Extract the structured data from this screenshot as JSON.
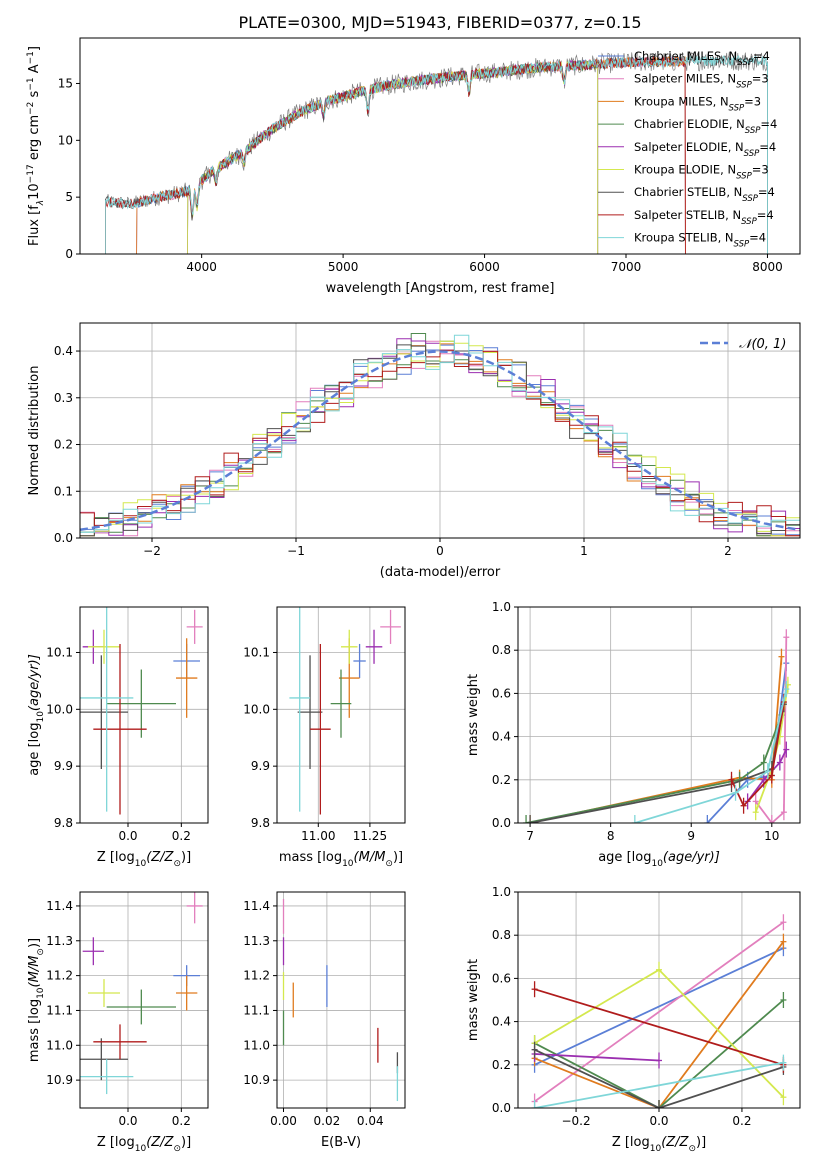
{
  "title": "PLATE=0300, MJD=51943, FIBERID=0377, z=0.15",
  "model_colors": {
    "Chabrier MILES": "#5b7fd6",
    "Salpeter MILES": "#e27fbd",
    "Kroupa MILES": "#e07b1e",
    "Chabrier ELODIE": "#4f8a4f",
    "Salpeter ELODIE": "#9b2fb0",
    "Kroupa ELODIE": "#d4e84e",
    "Chabrier STELIB": "#505050",
    "Salpeter STELIB": "#b01c1c",
    "Kroupa STELIB": "#7fd6d8"
  },
  "chart_data": [
    {
      "id": "spectrum",
      "type": "line",
      "xlabel": "wavelength [Angstrom, rest frame]",
      "ylabel_main": "Flux [f",
      "ylabel_sub": "λ",
      "ylabel_mid": "10",
      "ylabel_sup": "−17",
      "ylabel_tail": " erg cm",
      "ylabel_sup2": "−2",
      "ylabel_tail2": " s",
      "ylabel_sup3": "−1",
      "ylabel_tail3": " A",
      "ylabel_sup4": "−1",
      "ylabel_end": "]",
      "xlim": [
        3140,
        8230
      ],
      "ylim": [
        0,
        19
      ],
      "xticks": [
        "4000",
        "5000",
        "6000",
        "7000",
        "8000"
      ],
      "xtick_values": [
        4000,
        5000,
        6000,
        7000,
        8000
      ],
      "yticks": [
        "0",
        "5",
        "10",
        "15"
      ],
      "ytick_values": [
        0,
        5,
        10,
        15
      ],
      "legend_position": "top-right",
      "legend": [
        {
          "label": "Chabrier MILES, N",
          "sub": "SSP",
          "tail": "=4",
          "model": "Chabrier MILES"
        },
        {
          "label": "Salpeter MILES, N",
          "sub": "SSP",
          "tail": "=3",
          "model": "Salpeter MILES"
        },
        {
          "label": "Kroupa MILES, N",
          "sub": "SSP",
          "tail": "=3",
          "model": "Kroupa MILES"
        },
        {
          "label": "Chabrier ELODIE, N",
          "sub": "SSP",
          "tail": "=4",
          "model": "Chabrier ELODIE"
        },
        {
          "label": "Salpeter ELODIE, N",
          "sub": "SSP",
          "tail": "=4",
          "model": "Salpeter ELODIE"
        },
        {
          "label": "Kroupa ELODIE, N",
          "sub": "SSP",
          "tail": "=3",
          "model": "Kroupa ELODIE"
        },
        {
          "label": "Chabrier STELIB, N",
          "sub": "SSP",
          "tail": "=4",
          "model": "Chabrier STELIB"
        },
        {
          "label": "Salpeter STELIB, N",
          "sub": "SSP",
          "tail": "=4",
          "model": "Salpeter STELIB"
        },
        {
          "label": "Kroupa STELIB, N",
          "sub": "SSP",
          "tail": "=4",
          "model": "Kroupa STELIB"
        }
      ],
      "continuum_x": [
        3320,
        3500,
        3700,
        3900,
        4100,
        4300,
        4500,
        4700,
        4900,
        5100,
        5300,
        5500,
        5700,
        5900,
        6100,
        6300,
        6500,
        6700,
        6900,
        7100,
        7300,
        7500,
        7700,
        7900,
        8000
      ],
      "continuum_y": [
        4.6,
        4.4,
        5.0,
        5.5,
        7.5,
        9.0,
        11.0,
        12.5,
        13.5,
        14.2,
        14.8,
        15.2,
        15.5,
        15.8,
        16.0,
        16.3,
        16.5,
        16.6,
        16.8,
        16.9,
        16.9,
        17.0,
        17.0,
        17.0,
        17.0
      ],
      "data_extent": [
        3320,
        8000
      ],
      "model_extents": {
        "Chabrier MILES": [
          3540,
          7420
        ],
        "Salpeter MILES": [
          3540,
          7420
        ],
        "Kroupa MILES": [
          3540,
          7420
        ],
        "Chabrier ELODIE": [
          3900,
          6800
        ],
        "Salpeter ELODIE": [
          3900,
          6800
        ],
        "Kroupa ELODIE": [
          3900,
          6800
        ],
        "Chabrier STELIB": [
          3320,
          8000
        ],
        "Salpeter STELIB": [
          3320,
          7420
        ],
        "Kroupa STELIB": [
          3320,
          8000
        ]
      }
    },
    {
      "id": "residuals",
      "type": "histogram",
      "xlabel": "(data-model)/error",
      "ylabel": "Normed distribution",
      "xlim": [
        -2.5,
        2.5
      ],
      "ylim": [
        0,
        0.46
      ],
      "xticks": [
        "−2",
        "−1",
        "0",
        "1",
        "2"
      ],
      "xtick_values": [
        -2,
        -1,
        0,
        1,
        2
      ],
      "yticks": [
        "0.0",
        "0.1",
        "0.2",
        "0.3",
        "0.4"
      ],
      "ytick_values": [
        0,
        0.1,
        0.2,
        0.3,
        0.4
      ],
      "grid": true,
      "bin_width": 0.1,
      "reference_label": "𝒩(0, 1)",
      "reference_color": "#5b7fd6",
      "legend_position": "top-right"
    },
    {
      "id": "age-vs-Z",
      "type": "scatter",
      "xlabel": "Z [log",
      "xlabel_sub": "10",
      "xlabel_tail": "(Z/Z",
      "xlabel_sub2": "⊙",
      "xlabel_end": ")]",
      "ylabel": "age  [log",
      "ylabel_sub": "10",
      "ylabel_tail": "(age/yr)]",
      "xlim": [
        -0.18,
        0.3
      ],
      "ylim": [
        9.8,
        10.18
      ],
      "xticks": [
        "0.0",
        "0.2"
      ],
      "xtick_values": [
        0.0,
        0.2
      ],
      "yticks": [
        "9.8",
        "9.9",
        "10.0",
        "10.1"
      ],
      "ytick_values": [
        9.8,
        9.9,
        10.0,
        10.1
      ],
      "grid": true,
      "points": [
        {
          "model": "Chabrier MILES",
          "x": 0.22,
          "xerr": 0.05,
          "y": 10.085,
          "yerr": 0.03
        },
        {
          "model": "Salpeter MILES",
          "x": 0.25,
          "xerr": 0.03,
          "y": 10.145,
          "yerr": 0.03
        },
        {
          "model": "Kroupa MILES",
          "x": 0.22,
          "xerr": 0.04,
          "y": 10.055,
          "yerr": 0.07
        },
        {
          "model": "Chabrier ELODIE",
          "x": 0.05,
          "xerr": 0.13,
          "y": 10.01,
          "yerr": 0.06
        },
        {
          "model": "Salpeter ELODIE",
          "x": -0.13,
          "xerr": 0.04,
          "y": 10.11,
          "yerr": 0.03
        },
        {
          "model": "Kroupa ELODIE",
          "x": -0.09,
          "xerr": 0.06,
          "y": 10.11,
          "yerr": 0.03
        },
        {
          "model": "Chabrier STELIB",
          "x": -0.1,
          "xerr": 0.1,
          "y": 9.995,
          "yerr": 0.1
        },
        {
          "model": "Salpeter STELIB",
          "x": -0.03,
          "xerr": 0.1,
          "y": 9.965,
          "yerr": 0.15
        },
        {
          "model": "Kroupa STELIB",
          "x": -0.08,
          "xerr": 0.1,
          "y": 10.02,
          "yerr": 0.2
        }
      ]
    },
    {
      "id": "age-vs-mass",
      "type": "scatter",
      "xlabel": "mass [log",
      "xlabel_sub": "10",
      "xlabel_tail": "(M/M",
      "xlabel_sub2": "⊙",
      "xlabel_end": ")]",
      "xlim": [
        10.8,
        11.42
      ],
      "ylim": [
        9.8,
        10.18
      ],
      "xticks": [
        "11.00",
        "11.25"
      ],
      "xtick_values": [
        11.0,
        11.25
      ],
      "yticks": [
        "9.8",
        "9.9",
        "10.0",
        "10.1"
      ],
      "ytick_values": [
        9.8,
        9.9,
        10.0,
        10.1
      ],
      "grid": true,
      "points": [
        {
          "model": "Chabrier MILES",
          "x": 11.2,
          "xerr": 0.03,
          "y": 10.085,
          "yerr": 0.03
        },
        {
          "model": "Salpeter MILES",
          "x": 11.35,
          "xerr": 0.05,
          "y": 10.145,
          "yerr": 0.03
        },
        {
          "model": "Kroupa MILES",
          "x": 11.15,
          "xerr": 0.05,
          "y": 10.055,
          "yerr": 0.07
        },
        {
          "model": "Chabrier ELODIE",
          "x": 11.11,
          "xerr": 0.05,
          "y": 10.01,
          "yerr": 0.06
        },
        {
          "model": "Salpeter ELODIE",
          "x": 11.27,
          "xerr": 0.04,
          "y": 10.11,
          "yerr": 0.03
        },
        {
          "model": "Kroupa ELODIE",
          "x": 11.15,
          "xerr": 0.04,
          "y": 10.11,
          "yerr": 0.03
        },
        {
          "model": "Chabrier STELIB",
          "x": 10.96,
          "xerr": 0.06,
          "y": 9.995,
          "yerr": 0.1
        },
        {
          "model": "Salpeter STELIB",
          "x": 11.01,
          "xerr": 0.05,
          "y": 9.965,
          "yerr": 0.15
        },
        {
          "model": "Kroupa STELIB",
          "x": 10.91,
          "xerr": 0.05,
          "y": 10.02,
          "yerr": 0.2
        }
      ]
    },
    {
      "id": "weight-vs-age",
      "type": "line",
      "xlabel": "age  [log",
      "xlabel_sub": "10",
      "xlabel_tail": "(age/yr)]",
      "ylabel": "mass weight",
      "xlim": [
        6.85,
        10.35
      ],
      "ylim": [
        0,
        1
      ],
      "xticks": [
        "7",
        "8",
        "9",
        "10"
      ],
      "xtick_values": [
        7,
        8,
        9,
        10
      ],
      "yticks": [
        "0.0",
        "0.2",
        "0.4",
        "0.6",
        "0.8",
        "1.0"
      ],
      "ytick_values": [
        0,
        0.2,
        0.4,
        0.6,
        0.8,
        1.0
      ],
      "grid": true,
      "series": [
        {
          "model": "Chabrier MILES",
          "x": [
            9.2,
            9.7,
            10.0,
            10.18
          ],
          "y": [
            0.0,
            0.2,
            0.22,
            0.74
          ]
        },
        {
          "model": "Salpeter MILES",
          "x": [
            9.8,
            10.0,
            10.15,
            10.18
          ],
          "y": [
            0.1,
            0.0,
            0.05,
            0.86
          ]
        },
        {
          "model": "Kroupa MILES",
          "x": [
            7.0,
            9.6,
            10.0,
            10.12
          ],
          "y": [
            0.0,
            0.21,
            0.2,
            0.77
          ]
        },
        {
          "model": "Chabrier ELODIE",
          "x": [
            6.95,
            9.6,
            9.9,
            10.12
          ],
          "y": [
            0.0,
            0.2,
            0.28,
            0.5
          ]
        },
        {
          "model": "Salpeter ELODIE",
          "x": [
            9.7,
            9.9,
            10.1,
            10.18
          ],
          "y": [
            0.1,
            0.2,
            0.28,
            0.34
          ]
        },
        {
          "model": "Kroupa ELODIE",
          "x": [
            9.8,
            10.0,
            10.1,
            10.2
          ],
          "y": [
            0.05,
            0.25,
            0.4,
            0.64
          ]
        },
        {
          "model": "Chabrier STELIB",
          "x": [
            7.0,
            9.5,
            10.0,
            10.15
          ],
          "y": [
            0.0,
            0.18,
            0.25,
            0.55
          ]
        },
        {
          "model": "Salpeter STELIB",
          "x": [
            9.5,
            9.65,
            10.0,
            10.15
          ],
          "y": [
            0.2,
            0.08,
            0.22,
            0.56
          ]
        },
        {
          "model": "Kroupa STELIB",
          "x": [
            8.3,
            9.55,
            9.95,
            10.18
          ],
          "y": [
            0.0,
            0.14,
            0.24,
            0.62
          ]
        }
      ]
    },
    {
      "id": "mass-vs-Z",
      "type": "scatter",
      "xlabel": "Z [log",
      "xlabel_sub": "10",
      "xlabel_tail": "(Z/Z",
      "xlabel_sub2": "⊙",
      "xlabel_end": ")]",
      "ylabel": "mass [log",
      "ylabel_sub": "10",
      "ylabel_tail": "(M/M",
      "ylabel_sub2": "⊙",
      "ylabel_end": ")]",
      "xlim": [
        -0.18,
        0.3
      ],
      "ylim": [
        10.82,
        11.44
      ],
      "xticks": [
        "0.0",
        "0.2"
      ],
      "xtick_values": [
        0.0,
        0.2
      ],
      "yticks": [
        "10.9",
        "11.0",
        "11.1",
        "11.2",
        "11.3",
        "11.4"
      ],
      "ytick_values": [
        10.9,
        11.0,
        11.1,
        11.2,
        11.3,
        11.4
      ],
      "grid": true,
      "points": [
        {
          "model": "Chabrier MILES",
          "x": 0.22,
          "xerr": 0.05,
          "y": 11.2,
          "yerr": 0.03
        },
        {
          "model": "Salpeter MILES",
          "x": 0.25,
          "xerr": 0.03,
          "y": 11.4,
          "yerr": 0.05
        },
        {
          "model": "Kroupa MILES",
          "x": 0.22,
          "xerr": 0.04,
          "y": 11.15,
          "yerr": 0.05
        },
        {
          "model": "Chabrier ELODIE",
          "x": 0.05,
          "xerr": 0.13,
          "y": 11.11,
          "yerr": 0.05
        },
        {
          "model": "Salpeter ELODIE",
          "x": -0.13,
          "xerr": 0.04,
          "y": 11.27,
          "yerr": 0.04
        },
        {
          "model": "Kroupa ELODIE",
          "x": -0.09,
          "xerr": 0.06,
          "y": 11.15,
          "yerr": 0.04
        },
        {
          "model": "Chabrier STELIB",
          "x": -0.1,
          "xerr": 0.1,
          "y": 10.96,
          "yerr": 0.06
        },
        {
          "model": "Salpeter STELIB",
          "x": -0.03,
          "xerr": 0.1,
          "y": 11.01,
          "yerr": 0.05
        },
        {
          "model": "Kroupa STELIB",
          "x": -0.08,
          "xerr": 0.1,
          "y": 10.91,
          "yerr": 0.05
        }
      ]
    },
    {
      "id": "mass-vs-ebv",
      "type": "scatter",
      "xlabel": "E(B-V)",
      "xlim": [
        -0.003,
        0.056
      ],
      "ylim": [
        10.82,
        11.44
      ],
      "xticks": [
        "0.00",
        "0.02",
        "0.04"
      ],
      "xtick_values": [
        0.0,
        0.02,
        0.04
      ],
      "yticks": [
        "10.9",
        "11.0",
        "11.1",
        "11.2",
        "11.3",
        "11.4"
      ],
      "ytick_values": [
        10.9,
        11.0,
        11.1,
        11.2,
        11.3,
        11.4
      ],
      "grid": true,
      "points": [
        {
          "model": "Chabrier MILES",
          "x": 0.02,
          "y": 11.17,
          "yerr": 0.06
        },
        {
          "model": "Salpeter MILES",
          "x": 0.0,
          "y": 11.37,
          "yerr": 0.05
        },
        {
          "model": "Kroupa MILES",
          "x": 0.0045,
          "y": 11.13,
          "yerr": 0.05
        },
        {
          "model": "Chabrier ELODIE",
          "x": 0.0,
          "y": 11.05,
          "yerr": 0.05
        },
        {
          "model": "Salpeter ELODIE",
          "x": 0.0,
          "y": 11.27,
          "yerr": 0.04
        },
        {
          "model": "Kroupa ELODIE",
          "x": 0.0,
          "y": 11.17,
          "yerr": 0.04
        },
        {
          "model": "Chabrier STELIB",
          "x": 0.0525,
          "y": 10.95,
          "yerr": 0.03
        },
        {
          "model": "Salpeter STELIB",
          "x": 0.0435,
          "y": 11.0,
          "yerr": 0.05
        },
        {
          "model": "Kroupa STELIB",
          "x": 0.0525,
          "y": 10.89,
          "yerr": 0.05
        }
      ]
    },
    {
      "id": "weight-vs-Z",
      "type": "line",
      "xlabel": "Z [log",
      "xlabel_sub": "10",
      "xlabel_tail": "(Z/Z",
      "xlabel_sub2": "⊙",
      "xlabel_end": ")]",
      "ylabel": "mass weight",
      "xlim": [
        -0.34,
        0.34
      ],
      "ylim": [
        0,
        1
      ],
      "xticks": [
        "−0.2",
        "0.0",
        "0.2"
      ],
      "xtick_values": [
        -0.2,
        0.0,
        0.2
      ],
      "yticks": [
        "0.0",
        "0.2",
        "0.4",
        "0.6",
        "0.8",
        "1.0"
      ],
      "ytick_values": [
        0,
        0.2,
        0.4,
        0.6,
        0.8,
        1.0
      ],
      "grid": true,
      "series": [
        {
          "model": "Chabrier MILES",
          "x": [
            -0.3,
            0.3
          ],
          "y": [
            0.2,
            0.74
          ]
        },
        {
          "model": "Salpeter MILES",
          "x": [
            -0.3,
            0.3
          ],
          "y": [
            0.03,
            0.86
          ]
        },
        {
          "model": "Kroupa MILES",
          "x": [
            -0.3,
            0.0,
            0.3
          ],
          "y": [
            0.23,
            0.0,
            0.77
          ]
        },
        {
          "model": "Chabrier ELODIE",
          "x": [
            -0.3,
            0.0,
            0.3
          ],
          "y": [
            0.3,
            0.0,
            0.5
          ]
        },
        {
          "model": "Salpeter ELODIE",
          "x": [
            -0.3,
            0.0
          ],
          "y": [
            0.25,
            0.22
          ]
        },
        {
          "model": "Kroupa ELODIE",
          "x": [
            -0.3,
            0.0,
            0.3
          ],
          "y": [
            0.3,
            0.64,
            0.05
          ]
        },
        {
          "model": "Chabrier STELIB",
          "x": [
            -0.3,
            0.0,
            0.3
          ],
          "y": [
            0.27,
            0.0,
            0.19
          ]
        },
        {
          "model": "Salpeter STELIB",
          "x": [
            -0.3,
            0.3
          ],
          "y": [
            0.55,
            0.2
          ]
        },
        {
          "model": "Kroupa STELIB",
          "x": [
            -0.3,
            0.3
          ],
          "y": [
            0.0,
            0.21
          ]
        }
      ]
    }
  ]
}
